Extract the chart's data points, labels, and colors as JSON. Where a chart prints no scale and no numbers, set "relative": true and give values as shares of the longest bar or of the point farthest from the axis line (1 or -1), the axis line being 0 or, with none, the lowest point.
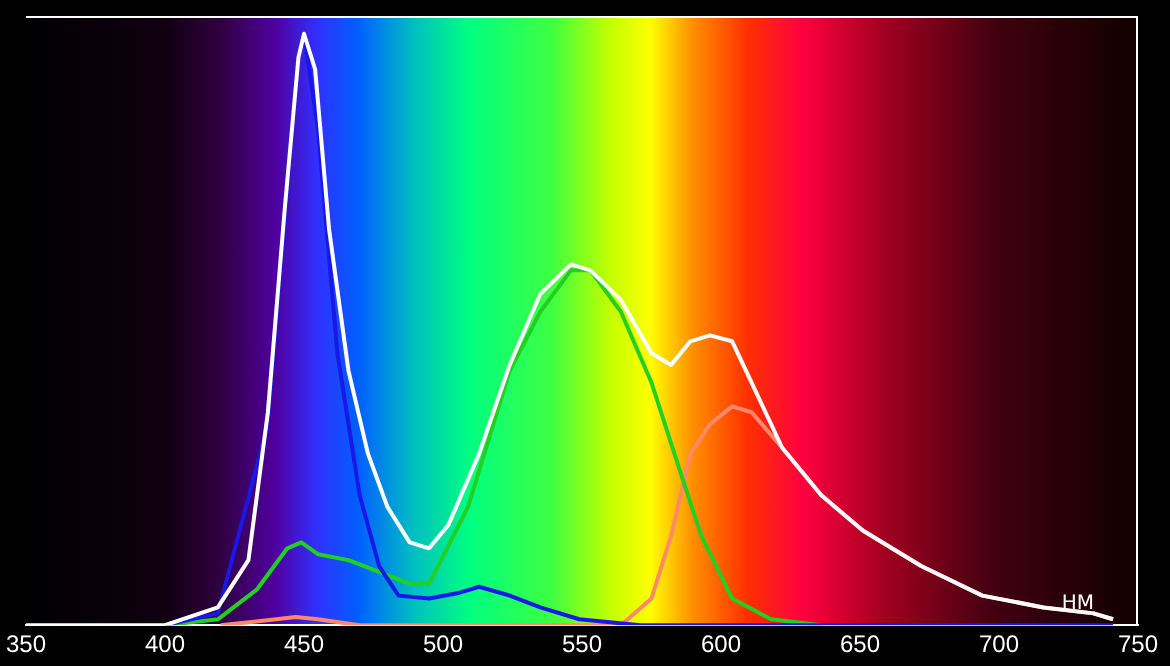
{
  "chart_data": {
    "type": "line",
    "xlabel": "НМ",
    "relative": true,
    "xlim": [
      350,
      750
    ],
    "xticks": [
      350,
      400,
      450,
      500,
      550,
      600,
      650,
      700,
      750
    ],
    "grid": false,
    "legend": false,
    "tick_labels": "x",
    "marker": "none",
    "line_style": "solid",
    "series": [
      {
        "color": "#ffffff",
        "x": [
          350,
          400,
          419,
          430,
          437,
          443,
          448,
          450,
          454,
          459,
          466,
          473,
          480,
          488,
          495,
          502,
          513,
          524,
          535,
          546,
          553,
          564,
          575,
          582,
          589,
          596,
          604,
          611,
          622,
          636,
          651,
          672,
          694,
          716,
          734,
          741
        ],
        "values": [
          0,
          0,
          0.03,
          0.11,
          0.36,
          0.7,
          0.96,
          1,
          0.94,
          0.67,
          0.43,
          0.29,
          0.2,
          0.14,
          0.13,
          0.17,
          0.29,
          0.44,
          0.56,
          0.61,
          0.6,
          0.55,
          0.46,
          0.44,
          0.48,
          0.49,
          0.48,
          0.41,
          0.3,
          0.22,
          0.16,
          0.1,
          0.05,
          0.03,
          0.02,
          0.01
        ]
      },
      {
        "color": "#1818e8",
        "x": [
          400,
          419,
          437,
          448,
          450,
          455,
          462,
          470,
          477,
          484,
          495,
          506,
          513,
          524,
          535,
          549,
          571,
          650,
          741
        ],
        "values": [
          0,
          0.02,
          0.34,
          0.96,
          1,
          0.84,
          0.46,
          0.22,
          0.1,
          0.05,
          0.045,
          0.055,
          0.065,
          0.05,
          0.03,
          0.01,
          0,
          0,
          0
        ]
      },
      {
        "color": "#22d022",
        "x": [
          400,
          419,
          433,
          444,
          449,
          455,
          466,
          477,
          488,
          495,
          509,
          524,
          535,
          546,
          553,
          564,
          575,
          586,
          593,
          604,
          618,
          636
        ],
        "values": [
          0,
          0.01,
          0.06,
          0.13,
          0.14,
          0.12,
          0.11,
          0.09,
          0.07,
          0.07,
          0.2,
          0.43,
          0.53,
          0.6,
          0.6,
          0.53,
          0.41,
          0.25,
          0.15,
          0.045,
          0.01,
          0
        ]
      },
      {
        "color": "#ff8868",
        "x": [
          420,
          440,
          447,
          455,
          470,
          564,
          575,
          582,
          589,
          596,
          604,
          611,
          622,
          636,
          651,
          672,
          694,
          716,
          734,
          741
        ],
        "values": [
          0,
          0.01,
          0.014,
          0.01,
          0,
          0,
          0.045,
          0.15,
          0.29,
          0.34,
          0.37,
          0.36,
          0.3,
          0.22,
          0.16,
          0.1,
          0.05,
          0.03,
          0.02,
          0.01
        ]
      }
    ]
  }
}
